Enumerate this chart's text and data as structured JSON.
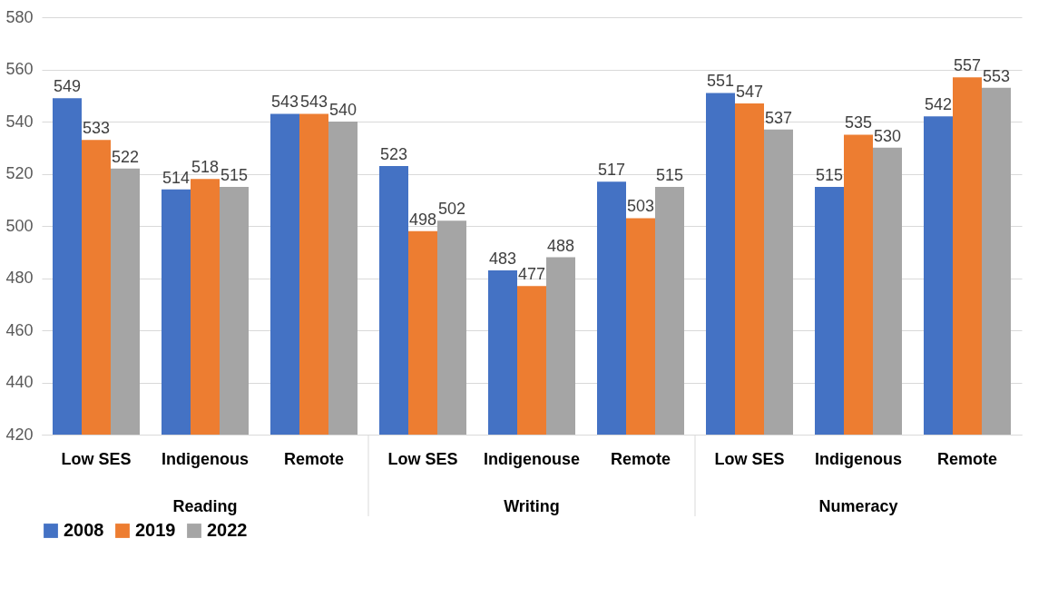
{
  "chart_data": {
    "type": "bar",
    "categories": [
      "Low SES",
      "Indigenous",
      "Remote",
      "Low SES",
      "Indigenouse",
      "Remote",
      "Low SES",
      "Indigenous",
      "Remote"
    ],
    "series": [
      {
        "name": "2008",
        "color": "#4472c4",
        "values": [
          549,
          514,
          543,
          523,
          483,
          517,
          551,
          515,
          542
        ]
      },
      {
        "name": "2019",
        "color": "#ed7d31",
        "values": [
          533,
          518,
          543,
          498,
          477,
          503,
          547,
          535,
          557
        ]
      },
      {
        "name": "2022",
        "color": "#a5a5a5",
        "values": [
          522,
          515,
          540,
          502,
          488,
          515,
          537,
          530,
          553
        ]
      }
    ],
    "annotations": [
      "Reading",
      "Writing",
      "Numeracy"
    ],
    "ylim": [
      420,
      580
    ],
    "yticks": [
      420,
      440,
      460,
      480,
      500,
      520,
      540,
      560,
      580
    ],
    "grid": "y",
    "legend": "bottom",
    "data_labels": true
  }
}
